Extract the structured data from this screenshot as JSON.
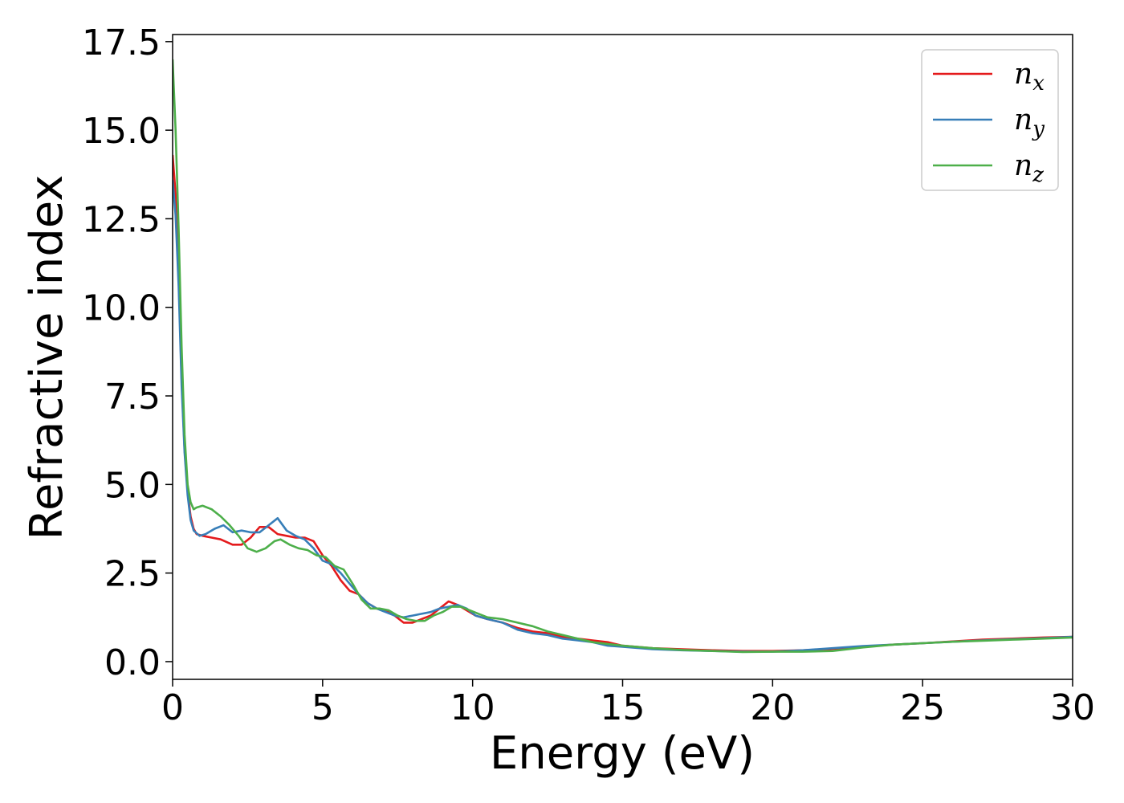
{
  "chart_data": {
    "type": "line",
    "xlabel": "Energy (eV)",
    "ylabel": "Refractive index",
    "xlim": [
      0,
      30
    ],
    "ylim": [
      -0.5,
      17.7
    ],
    "xticks": [
      0,
      5,
      10,
      15,
      20,
      25,
      30
    ],
    "xtick_labels": [
      "0",
      "5",
      "10",
      "15",
      "20",
      "25",
      "30"
    ],
    "yticks": [
      0.0,
      2.5,
      5.0,
      7.5,
      10.0,
      12.5,
      15.0,
      17.5
    ],
    "ytick_labels": [
      "0.0",
      "2.5",
      "5.0",
      "7.5",
      "10.0",
      "12.5",
      "15.0",
      "17.5"
    ],
    "grid": false,
    "legend_position": "top-right",
    "series": [
      {
        "name": "n",
        "subscript": "x",
        "color": "#e41a1c",
        "points": [
          [
            0,
            14.3
          ],
          [
            0.1,
            13.2
          ],
          [
            0.2,
            11.0
          ],
          [
            0.3,
            8.0
          ],
          [
            0.4,
            6.0
          ],
          [
            0.5,
            4.8
          ],
          [
            0.6,
            4.1
          ],
          [
            0.7,
            3.75
          ],
          [
            0.8,
            3.6
          ],
          [
            1.0,
            3.55
          ],
          [
            1.3,
            3.5
          ],
          [
            1.6,
            3.45
          ],
          [
            2.0,
            3.3
          ],
          [
            2.3,
            3.3
          ],
          [
            2.6,
            3.5
          ],
          [
            2.9,
            3.8
          ],
          [
            3.2,
            3.8
          ],
          [
            3.5,
            3.6
          ],
          [
            3.8,
            3.55
          ],
          [
            4.1,
            3.5
          ],
          [
            4.4,
            3.5
          ],
          [
            4.7,
            3.4
          ],
          [
            5.0,
            3.0
          ],
          [
            5.3,
            2.7
          ],
          [
            5.6,
            2.3
          ],
          [
            5.9,
            2.0
          ],
          [
            6.2,
            1.9
          ],
          [
            6.5,
            1.65
          ],
          [
            6.8,
            1.5
          ],
          [
            7.1,
            1.45
          ],
          [
            7.4,
            1.3
          ],
          [
            7.7,
            1.1
          ],
          [
            8.0,
            1.1
          ],
          [
            8.3,
            1.2
          ],
          [
            8.6,
            1.3
          ],
          [
            8.9,
            1.5
          ],
          [
            9.2,
            1.7
          ],
          [
            9.5,
            1.6
          ],
          [
            9.8,
            1.45
          ],
          [
            10.1,
            1.3
          ],
          [
            10.5,
            1.2
          ],
          [
            11.0,
            1.1
          ],
          [
            11.5,
            0.95
          ],
          [
            12.0,
            0.85
          ],
          [
            12.5,
            0.8
          ],
          [
            13.0,
            0.7
          ],
          [
            13.5,
            0.65
          ],
          [
            14.0,
            0.6
          ],
          [
            14.5,
            0.55
          ],
          [
            15.0,
            0.45
          ],
          [
            16.0,
            0.38
          ],
          [
            17.0,
            0.35
          ],
          [
            18.0,
            0.32
          ],
          [
            19.0,
            0.3
          ],
          [
            20.0,
            0.3
          ],
          [
            21.0,
            0.32
          ],
          [
            22.0,
            0.36
          ],
          [
            23.0,
            0.42
          ],
          [
            24.0,
            0.48
          ],
          [
            25.0,
            0.52
          ],
          [
            26.0,
            0.57
          ],
          [
            27.0,
            0.62
          ],
          [
            28.0,
            0.65
          ],
          [
            29.0,
            0.68
          ],
          [
            30.0,
            0.7
          ]
        ]
      },
      {
        "name": "n",
        "subscript": "y",
        "color": "#377eb8",
        "points": [
          [
            0,
            13.6
          ],
          [
            0.1,
            12.6
          ],
          [
            0.2,
            10.6
          ],
          [
            0.3,
            7.8
          ],
          [
            0.4,
            5.9
          ],
          [
            0.5,
            4.7
          ],
          [
            0.6,
            4.0
          ],
          [
            0.7,
            3.7
          ],
          [
            0.9,
            3.55
          ],
          [
            1.1,
            3.6
          ],
          [
            1.4,
            3.75
          ],
          [
            1.7,
            3.85
          ],
          [
            2.0,
            3.65
          ],
          [
            2.3,
            3.7
          ],
          [
            2.6,
            3.65
          ],
          [
            2.9,
            3.65
          ],
          [
            3.2,
            3.85
          ],
          [
            3.5,
            4.05
          ],
          [
            3.8,
            3.7
          ],
          [
            4.1,
            3.55
          ],
          [
            4.4,
            3.45
          ],
          [
            4.7,
            3.2
          ],
          [
            5.0,
            2.85
          ],
          [
            5.3,
            2.75
          ],
          [
            5.6,
            2.5
          ],
          [
            5.9,
            2.2
          ],
          [
            6.2,
            1.9
          ],
          [
            6.5,
            1.65
          ],
          [
            6.8,
            1.5
          ],
          [
            7.1,
            1.4
          ],
          [
            7.4,
            1.3
          ],
          [
            7.7,
            1.25
          ],
          [
            8.0,
            1.3
          ],
          [
            8.3,
            1.35
          ],
          [
            8.6,
            1.4
          ],
          [
            8.9,
            1.5
          ],
          [
            9.2,
            1.55
          ],
          [
            9.5,
            1.6
          ],
          [
            9.8,
            1.5
          ],
          [
            10.1,
            1.3
          ],
          [
            10.5,
            1.2
          ],
          [
            11.0,
            1.1
          ],
          [
            11.5,
            0.9
          ],
          [
            12.0,
            0.8
          ],
          [
            12.5,
            0.75
          ],
          [
            13.0,
            0.65
          ],
          [
            13.5,
            0.6
          ],
          [
            14.0,
            0.55
          ],
          [
            14.5,
            0.45
          ],
          [
            15.0,
            0.42
          ],
          [
            16.0,
            0.35
          ],
          [
            17.0,
            0.32
          ],
          [
            18.0,
            0.3
          ],
          [
            19.0,
            0.28
          ],
          [
            20.0,
            0.28
          ],
          [
            21.0,
            0.32
          ],
          [
            22.0,
            0.38
          ],
          [
            23.0,
            0.44
          ],
          [
            24.0,
            0.48
          ],
          [
            25.0,
            0.52
          ],
          [
            26.0,
            0.56
          ],
          [
            27.0,
            0.6
          ],
          [
            28.0,
            0.63
          ],
          [
            29.0,
            0.66
          ],
          [
            30.0,
            0.7
          ]
        ]
      },
      {
        "name": "n",
        "subscript": "z",
        "color": "#4daf4a",
        "points": [
          [
            0,
            17.0
          ],
          [
            0.1,
            15.0
          ],
          [
            0.2,
            12.2
          ],
          [
            0.3,
            8.9
          ],
          [
            0.4,
            6.4
          ],
          [
            0.5,
            5.0
          ],
          [
            0.6,
            4.5
          ],
          [
            0.7,
            4.3
          ],
          [
            0.8,
            4.35
          ],
          [
            1.0,
            4.4
          ],
          [
            1.3,
            4.3
          ],
          [
            1.6,
            4.1
          ],
          [
            1.9,
            3.85
          ],
          [
            2.2,
            3.55
          ],
          [
            2.5,
            3.2
          ],
          [
            2.8,
            3.1
          ],
          [
            3.1,
            3.2
          ],
          [
            3.4,
            3.4
          ],
          [
            3.6,
            3.45
          ],
          [
            3.9,
            3.3
          ],
          [
            4.2,
            3.2
          ],
          [
            4.5,
            3.15
          ],
          [
            4.8,
            3.0
          ],
          [
            5.1,
            2.95
          ],
          [
            5.4,
            2.7
          ],
          [
            5.7,
            2.6
          ],
          [
            6.0,
            2.2
          ],
          [
            6.3,
            1.75
          ],
          [
            6.6,
            1.5
          ],
          [
            6.9,
            1.5
          ],
          [
            7.2,
            1.45
          ],
          [
            7.5,
            1.3
          ],
          [
            7.8,
            1.2
          ],
          [
            8.1,
            1.15
          ],
          [
            8.4,
            1.15
          ],
          [
            8.7,
            1.3
          ],
          [
            9.0,
            1.4
          ],
          [
            9.3,
            1.55
          ],
          [
            9.6,
            1.55
          ],
          [
            9.9,
            1.45
          ],
          [
            10.2,
            1.35
          ],
          [
            10.5,
            1.25
          ],
          [
            11.0,
            1.2
          ],
          [
            11.5,
            1.1
          ],
          [
            12.0,
            1.0
          ],
          [
            12.5,
            0.85
          ],
          [
            13.0,
            0.75
          ],
          [
            13.5,
            0.65
          ],
          [
            14.0,
            0.55
          ],
          [
            14.5,
            0.5
          ],
          [
            15.0,
            0.45
          ],
          [
            16.0,
            0.38
          ],
          [
            17.0,
            0.33
          ],
          [
            18.0,
            0.3
          ],
          [
            19.0,
            0.27
          ],
          [
            20.0,
            0.28
          ],
          [
            21.0,
            0.28
          ],
          [
            22.0,
            0.3
          ],
          [
            23.0,
            0.4
          ],
          [
            24.0,
            0.48
          ],
          [
            25.0,
            0.52
          ],
          [
            26.0,
            0.56
          ],
          [
            27.0,
            0.59
          ],
          [
            28.0,
            0.62
          ],
          [
            29.0,
            0.65
          ],
          [
            30.0,
            0.68
          ]
        ]
      }
    ]
  }
}
